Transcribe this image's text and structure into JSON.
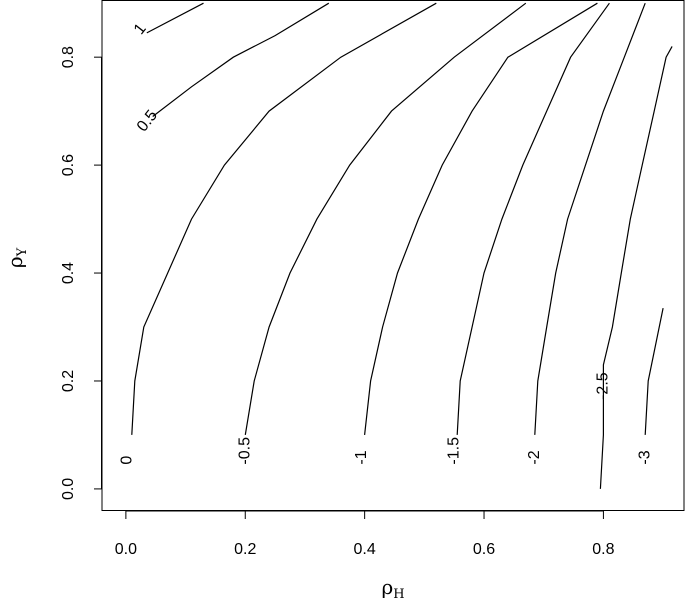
{
  "chart_data": {
    "type": "contour",
    "title": "",
    "xlabel": "ρ",
    "xlabel_sub": "H",
    "ylabel": "ρ",
    "ylabel_sub": "Y",
    "xlim": [
      -0.04,
      0.935
    ],
    "ylim": [
      -0.04,
      0.905
    ],
    "x_ticks": [
      0.0,
      0.2,
      0.4,
      0.6,
      0.8
    ],
    "x_tick_labels": [
      "0.0",
      "0.2",
      "0.4",
      "0.6",
      "0.8"
    ],
    "y_ticks": [
      0.0,
      0.2,
      0.4,
      0.6,
      0.8
    ],
    "y_tick_labels": [
      "0.0",
      "0.2",
      "0.4",
      "0.6",
      "0.8"
    ],
    "grid": false,
    "contours": [
      {
        "level": "1",
        "points": [
          [
            0.035,
            0.845
          ],
          [
            0.13,
            0.9
          ]
        ],
        "label_at": [
          0.02,
          0.845
        ],
        "label_angle": -52
      },
      {
        "level": "0.5",
        "points": [
          [
            0.045,
            0.69
          ],
          [
            0.11,
            0.745
          ],
          [
            0.18,
            0.8
          ],
          [
            0.25,
            0.84
          ],
          [
            0.34,
            0.9
          ]
        ],
        "label_at": [
          0.025,
          0.665
        ],
        "label_angle": -52
      },
      {
        "level": "0",
        "points": [
          [
            0.01,
            0.1
          ],
          [
            0.015,
            0.2
          ],
          [
            0.03,
            0.3
          ],
          [
            0.07,
            0.4
          ],
          [
            0.11,
            0.5
          ],
          [
            0.165,
            0.6
          ],
          [
            0.24,
            0.7
          ],
          [
            0.36,
            0.8
          ],
          [
            0.52,
            0.9
          ]
        ],
        "label_at": [
          0.002,
          0.045
        ],
        "label_angle": -90
      },
      {
        "level": "-0.5",
        "points": [
          [
            0.2,
            0.1
          ],
          [
            0.215,
            0.2
          ],
          [
            0.24,
            0.3
          ],
          [
            0.275,
            0.4
          ],
          [
            0.32,
            0.5
          ],
          [
            0.375,
            0.6
          ],
          [
            0.445,
            0.7
          ],
          [
            0.55,
            0.8
          ],
          [
            0.67,
            0.9
          ]
        ],
        "label_at": [
          0.2,
          0.045
        ],
        "label_angle": -90
      },
      {
        "level": "-1",
        "points": [
          [
            0.4,
            0.1
          ],
          [
            0.41,
            0.2
          ],
          [
            0.43,
            0.3
          ],
          [
            0.455,
            0.4
          ],
          [
            0.49,
            0.5
          ],
          [
            0.53,
            0.6
          ],
          [
            0.58,
            0.7
          ],
          [
            0.64,
            0.8
          ],
          [
            0.79,
            0.9
          ]
        ],
        "label_at": [
          0.395,
          0.045
        ],
        "label_angle": -90
      },
      {
        "level": "-1.5",
        "points": [
          [
            0.555,
            0.1
          ],
          [
            0.56,
            0.2
          ],
          [
            0.58,
            0.3
          ],
          [
            0.6,
            0.4
          ],
          [
            0.63,
            0.5
          ],
          [
            0.665,
            0.6
          ],
          [
            0.705,
            0.7
          ],
          [
            0.745,
            0.8
          ],
          [
            0.81,
            0.9
          ]
        ],
        "label_at": [
          0.55,
          0.045
        ],
        "label_angle": -90
      },
      {
        "level": "-2",
        "points": [
          [
            0.685,
            0.1
          ],
          [
            0.69,
            0.2
          ],
          [
            0.705,
            0.3
          ],
          [
            0.72,
            0.4
          ],
          [
            0.74,
            0.5
          ],
          [
            0.77,
            0.6
          ],
          [
            0.8,
            0.7
          ],
          [
            0.835,
            0.8
          ],
          [
            0.87,
            0.9
          ]
        ],
        "label_at": [
          0.685,
          0.045
        ],
        "label_angle": -90
      },
      {
        "level": "-2.5",
        "points": [
          [
            0.795,
            0.0
          ],
          [
            0.8,
            0.1
          ],
          [
            0.8,
            0.15
          ],
          [
            0.8,
            0.23
          ],
          [
            0.815,
            0.3
          ],
          [
            0.83,
            0.4
          ],
          [
            0.845,
            0.5
          ],
          [
            0.865,
            0.6
          ],
          [
            0.885,
            0.7
          ],
          [
            0.905,
            0.8
          ],
          [
            0.915,
            0.82
          ]
        ],
        "label_at": [
          0.8,
          0.165
        ],
        "label_angle": -90
      },
      {
        "level": "-3",
        "points": [
          [
            0.87,
            0.1
          ],
          [
            0.875,
            0.2
          ],
          [
            0.9,
            0.335
          ]
        ],
        "label_at": [
          0.87,
          0.045
        ],
        "label_angle": -90
      }
    ]
  }
}
